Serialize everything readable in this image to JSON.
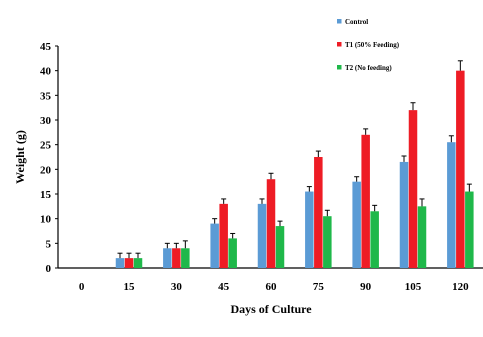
{
  "chart_data": {
    "type": "bar",
    "title": "",
    "xlabel": "Days of Culture",
    "ylabel": "Weight (g)",
    "ylim": [
      0,
      45
    ],
    "y_ticks": [
      0,
      5,
      10,
      15,
      20,
      25,
      30,
      35,
      40,
      45
    ],
    "grid": false,
    "legend_position": "top-right",
    "categories": [
      "0",
      "15",
      "30",
      "45",
      "60",
      "75",
      "90",
      "105",
      "120"
    ],
    "series": [
      {
        "name": "Control",
        "color": "#5b9bd5",
        "values": [
          null,
          2,
          4,
          9,
          13,
          15.5,
          17.5,
          21.5,
          25.5
        ],
        "errors": [
          null,
          1,
          1,
          1,
          1,
          1,
          1,
          1.2,
          1.3
        ]
      },
      {
        "name": "T1 (50% Feeding)",
        "color": "#ee1c25",
        "values": [
          null,
          2,
          4,
          13,
          18,
          22.5,
          27,
          32,
          40
        ],
        "errors": [
          null,
          1,
          1,
          1,
          1.2,
          1.2,
          1.2,
          1.5,
          2
        ]
      },
      {
        "name": "T2 (No feeding)",
        "color": "#1fb84a",
        "values": [
          null,
          2,
          4,
          6,
          8.5,
          10.5,
          11.5,
          12.5,
          15.5
        ],
        "errors": [
          null,
          1,
          1.5,
          1,
          1,
          1.2,
          1.2,
          1.5,
          1.5
        ]
      }
    ]
  }
}
